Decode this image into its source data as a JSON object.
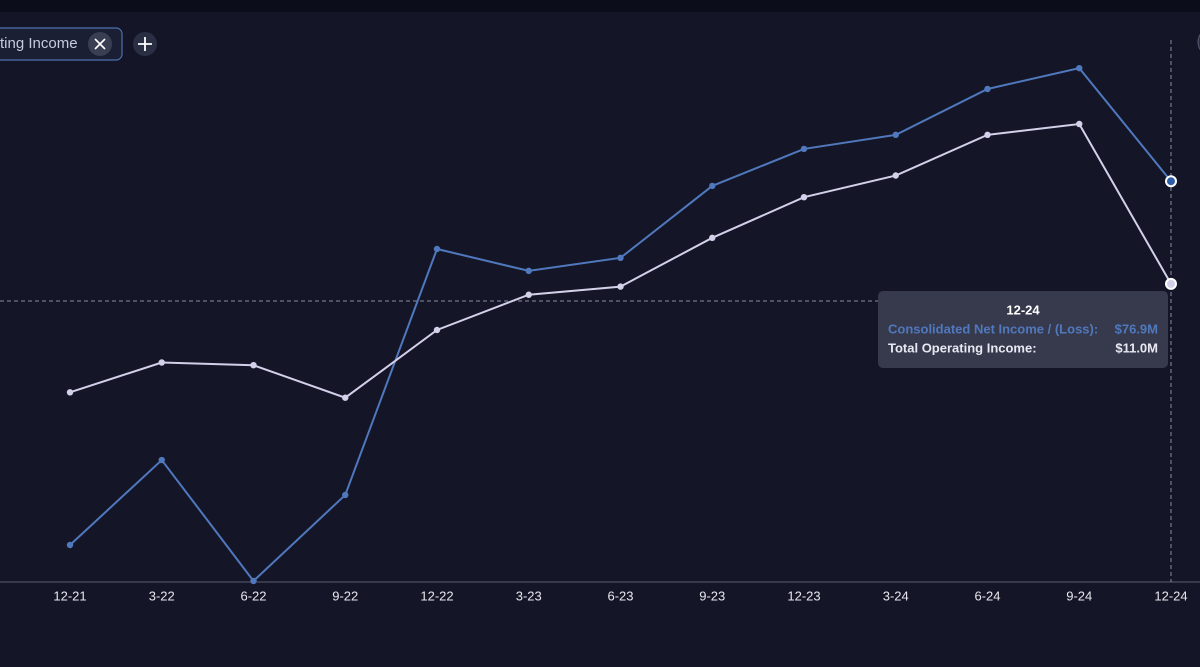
{
  "tab_label": "ting Income",
  "chart_data": {
    "type": "line",
    "categories": [
      "12-21",
      "3-22",
      "6-22",
      "9-22",
      "12-22",
      "3-23",
      "6-23",
      "9-23",
      "12-23",
      "3-24",
      "6-24",
      "9-24",
      "12-24"
    ],
    "ylim": [
      0,
      104
    ],
    "y2lim": [
      0,
      20
    ],
    "series": [
      {
        "color": "#5078bd",
        "values": [
          7.1,
          23.4,
          0.2,
          16.7,
          63.9,
          59.7,
          62.2,
          76.0,
          83.1,
          85.8,
          94.6,
          98.6,
          76.9
        ]
      },
      {
        "color": "#d3d0ea",
        "axis": "y2",
        "values": [
          7.0,
          8.1,
          8.0,
          6.8,
          9.3,
          10.6,
          10.9,
          12.7,
          14.2,
          15.0,
          16.5,
          16.9,
          11.0
        ]
      }
    ],
    "tooltip": {
      "title": "12-24",
      "items": [
        {
          "label": "Consolidated Net Income / (Loss):",
          "value": "$76.9M"
        },
        {
          "label": "Total Operating Income:",
          "value": "$11.0M"
        }
      ]
    }
  }
}
